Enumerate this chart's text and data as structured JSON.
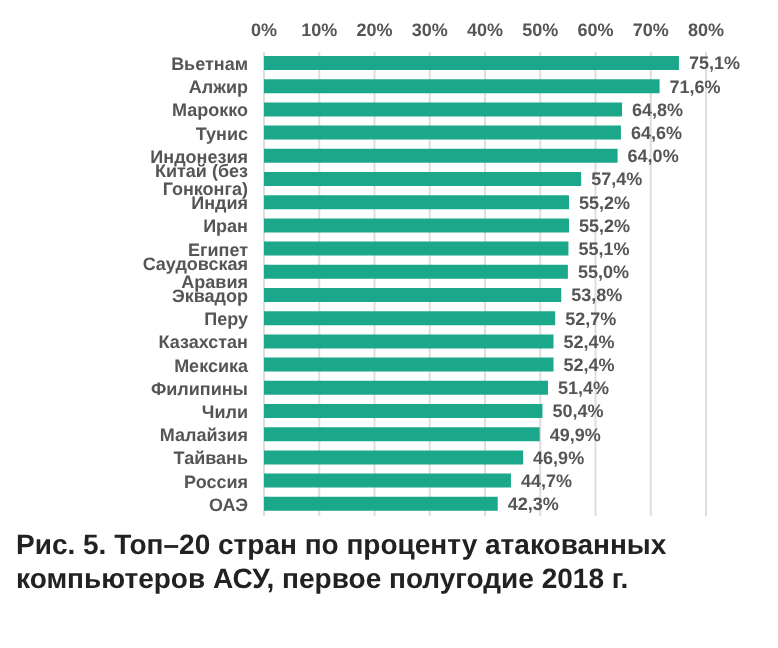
{
  "chart_data": {
    "type": "bar",
    "orientation": "horizontal",
    "title": "Рис. 5. Топ–20 стран по проценту атакованных компьютеров АСУ, первое полугодие 2018 г.",
    "categories": [
      "Вьетнам",
      "Алжир",
      "Марокко",
      "Тунис",
      "Индонезия",
      "Китай (без Гонконга)",
      "Индия",
      "Иран",
      "Египет",
      "Саудовская Аравия",
      "Эквадор",
      "Перу",
      "Казахстан",
      "Мексика",
      "Филипины",
      "Чили",
      "Малайзия",
      "Тайвань",
      "Россия",
      "ОАЭ"
    ],
    "values": [
      75.1,
      71.6,
      64.8,
      64.6,
      64.0,
      57.4,
      55.2,
      55.2,
      55.1,
      55.0,
      53.8,
      52.7,
      52.4,
      52.4,
      51.4,
      50.4,
      49.9,
      46.9,
      44.7,
      42.3
    ],
    "value_labels": [
      "75,1%",
      "71,6%",
      "64,8%",
      "64,6%",
      "64,0%",
      "57,4%",
      "55,2%",
      "55,2%",
      "55,1%",
      "55,0%",
      "53,8%",
      "52,7%",
      "52,4%",
      "52,4%",
      "51,4%",
      "50,4%",
      "49,9%",
      "46,9%",
      "44,7%",
      "42,3%"
    ],
    "color": "#1ba88a",
    "xlim": [
      0,
      80
    ],
    "xticks": [
      {
        "value": 0,
        "label": "0%"
      },
      {
        "value": 10,
        "label": "10%"
      },
      {
        "value": 20,
        "label": "20%"
      },
      {
        "value": 30,
        "label": "30%"
      },
      {
        "value": 40,
        "label": "40%"
      },
      {
        "value": 50,
        "label": "50%"
      },
      {
        "value": 60,
        "label": "60%"
      },
      {
        "value": 70,
        "label": "70%"
      },
      {
        "value": 80,
        "label": "80%"
      }
    ],
    "grid": "x"
  }
}
